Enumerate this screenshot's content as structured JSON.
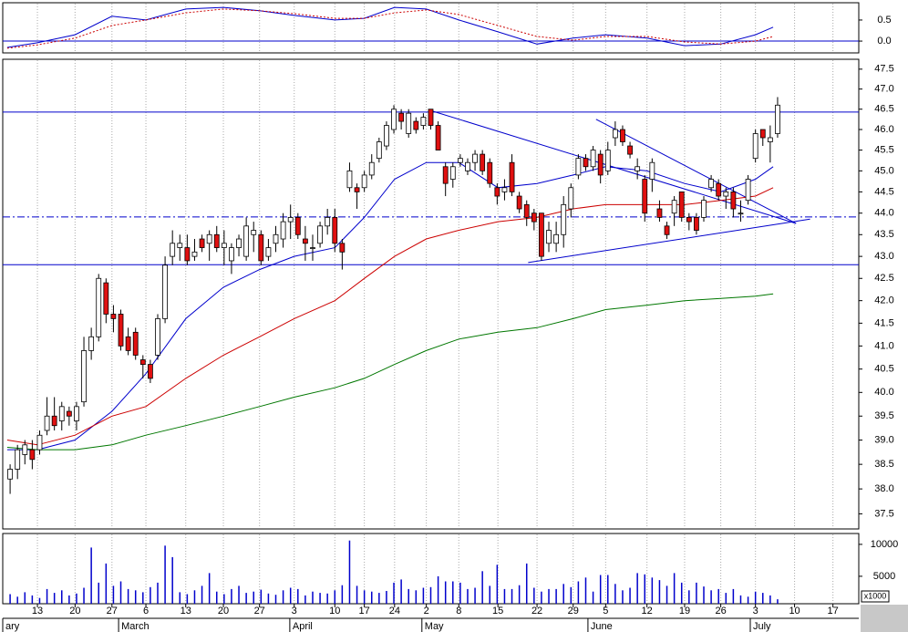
{
  "chart_data": [
    {
      "type": "line",
      "xlim": [
        0,
        116
      ],
      "ylim": [
        -0.28,
        0.91
      ],
      "yticks": [
        {
          "value": 0,
          "label": "0.0"
        },
        0.5
      ],
      "hlines": [
        {
          "value": 0,
          "color": "#0000cc",
          "style": "solid"
        }
      ],
      "series": [
        {
          "color": "#0000cc",
          "style": "solid",
          "x": [
            0.6,
            4.7,
            9.8,
            14.8,
            19.4,
            24.8,
            29.9,
            34.8,
            39.5,
            45.0,
            49.0,
            53.1,
            57.4,
            61.8,
            67.1,
            72.4,
            77.3,
            81.7,
            87.3,
            92.4,
            97.3,
            102.0,
            104.4
          ],
          "values": [
            -0.15,
            -0.04,
            0.15,
            0.59,
            0.5,
            0.76,
            0.8,
            0.72,
            0.61,
            0.5,
            0.54,
            0.8,
            0.76,
            0.5,
            0.22,
            -0.07,
            0.07,
            0.15,
            0.07,
            -0.11,
            -0.07,
            0.15,
            0.33
          ]
        },
        {
          "color": "#cc0000",
          "style": "dotted",
          "x": [
            0.6,
            4.7,
            9.8,
            14.8,
            19.4,
            24.8,
            29.9,
            34.8,
            39.5,
            45.0,
            49.0,
            53.1,
            57.4,
            61.8,
            67.1,
            72.4,
            77.3,
            81.7,
            87.3,
            92.4,
            97.3,
            102.0,
            104.4
          ],
          "values": [
            -0.17,
            -0.09,
            0.07,
            0.37,
            0.5,
            0.67,
            0.76,
            0.72,
            0.65,
            0.54,
            0.54,
            0.67,
            0.74,
            0.63,
            0.37,
            0.11,
            0.02,
            0.11,
            0.11,
            -0.02,
            -0.07,
            0,
            0.11
          ]
        }
      ]
    },
    {
      "type": "candlestick",
      "xlim": [
        0,
        116
      ],
      "ylim": [
        37.2,
        47.75
      ],
      "log": true,
      "yticks": [
        47.5,
        {
          "value": 47,
          "label": "47.0"
        },
        46.5,
        {
          "value": 46,
          "label": "46.0"
        },
        45.5,
        {
          "value": 45,
          "label": "45.0"
        },
        44.5,
        {
          "value": 44,
          "label": "44.0"
        },
        43.5,
        {
          "value": 43,
          "label": "43.0"
        },
        42.5,
        {
          "value": 42,
          "label": "42.0"
        },
        41.5,
        {
          "value": 41,
          "label": "41.0"
        },
        40.5,
        {
          "value": 40,
          "label": "40.0"
        },
        39.5,
        {
          "value": 39,
          "label": "39.0"
        },
        38.5,
        {
          "value": 38,
          "label": "38.0"
        },
        37.5
      ],
      "up_color": "#ffffff",
      "down_color": "#e01010",
      "x": [
        1,
        2,
        3,
        4,
        5,
        6,
        7,
        8,
        9,
        10,
        11,
        12,
        13,
        14,
        15,
        16,
        17,
        18,
        19,
        20,
        21,
        22,
        23,
        24,
        25,
        26,
        27,
        28,
        29,
        30,
        31,
        32,
        33,
        34,
        35,
        36,
        37,
        38,
        39,
        40,
        41,
        42,
        43,
        44,
        45,
        46,
        47,
        48,
        49,
        50,
        51,
        52,
        53,
        54,
        55,
        56,
        57,
        58,
        59,
        60,
        61,
        62,
        63,
        64,
        65,
        66,
        67,
        68,
        69,
        70,
        71,
        72,
        73,
        74,
        75,
        76,
        77,
        78,
        79,
        80,
        81,
        82,
        83,
        84,
        85,
        86,
        87,
        88,
        89,
        90,
        91,
        92,
        93,
        94,
        95,
        96,
        97,
        98,
        99,
        100,
        101,
        102,
        103,
        104,
        105
      ],
      "open": [
        38.2,
        38.4,
        38.7,
        38.8,
        38.8,
        39.2,
        39.5,
        39.4,
        39.6,
        39.4,
        39.8,
        40.9,
        41.2,
        42.4,
        41.7,
        41.7,
        41.2,
        41.3,
        40.7,
        40.6,
        40.8,
        41.6,
        43.0,
        43.2,
        43.2,
        43.0,
        43.4,
        43.3,
        43.5,
        43.2,
        42.9,
        43.2,
        43.0,
        43.5,
        43.5,
        43.0,
        43.3,
        43.4,
        43.8,
        43.9,
        43.4,
        43.2,
        43.3,
        43.7,
        43.9,
        43.3,
        44.6,
        44.6,
        44.6,
        44.9,
        45.3,
        45.6,
        46.0,
        46.4,
        45.9,
        46.2,
        46.1,
        46.5,
        46.1,
        45.1,
        44.8,
        45.2,
        45.0,
        45.2,
        45.4,
        45.2,
        44.6,
        44.5,
        45.2,
        44.4,
        44.2,
        44.0,
        44.0,
        43.3,
        43.3,
        43.5,
        44.1,
        44.9,
        45.3,
        45.1,
        45.4,
        45.0,
        45.8,
        46.0,
        45.6,
        45.0,
        44.8,
        44.8,
        44.1,
        43.7,
        44.0,
        44.5,
        43.9,
        43.9,
        43.9,
        44.6,
        44.7,
        44.4,
        44.5,
        44.0,
        44.3,
        45.3,
        46.0,
        45.7,
        45.9
      ],
      "high": [
        38.5,
        38.9,
        39.0,
        39.0,
        39.2,
        39.9,
        39.9,
        39.8,
        39.7,
        39.8,
        41.2,
        41.4,
        42.6,
        42.5,
        41.9,
        41.8,
        41.4,
        41.4,
        40.8,
        40.7,
        41.7,
        43.0,
        43.6,
        43.5,
        43.5,
        43.4,
        43.5,
        43.6,
        43.7,
        43.6,
        43.3,
        43.5,
        43.9,
        43.8,
        43.6,
        43.4,
        43.7,
        44.0,
        44.2,
        44.0,
        43.7,
        43.5,
        43.8,
        44.1,
        44.1,
        43.4,
        45.2,
        44.7,
        45.0,
        45.4,
        45.8,
        46.2,
        46.6,
        46.5,
        46.5,
        46.3,
        46.4,
        46.5,
        46.2,
        45.2,
        45.2,
        45.4,
        45.3,
        45.5,
        45.5,
        45.3,
        44.7,
        44.8,
        45.4,
        44.5,
        44.3,
        44.1,
        44.0,
        43.8,
        43.8,
        44.4,
        44.7,
        45.4,
        45.4,
        45.6,
        45.5,
        45.7,
        46.2,
        46.1,
        45.7,
        45.3,
        44.9,
        45.3,
        44.3,
        43.8,
        44.4,
        44.5,
        44.0,
        44.0,
        44.4,
        44.9,
        44.8,
        44.6,
        44.6,
        44.3,
        44.9,
        46.0,
        46.0,
        46.1,
        46.8
      ],
      "low": [
        37.9,
        38.2,
        38.5,
        38.4,
        38.7,
        39.1,
        39.2,
        39.2,
        39.3,
        39.2,
        39.7,
        40.7,
        41.1,
        41.5,
        41.3,
        40.9,
        40.8,
        40.7,
        40.3,
        40.2,
        40.7,
        41.5,
        42.8,
        42.9,
        42.8,
        42.9,
        43.1,
        42.9,
        43.1,
        42.8,
        42.6,
        43.0,
        42.9,
        43.1,
        42.8,
        42.9,
        43.1,
        43.2,
        43.4,
        43.4,
        42.9,
        42.9,
        43.2,
        43.5,
        43.1,
        42.7,
        44.5,
        44.1,
        44.5,
        44.8,
        45.2,
        45.5,
        45.9,
        46.0,
        45.8,
        45.9,
        46.0,
        46.0,
        45.5,
        44.4,
        44.6,
        45.1,
        44.9,
        45.0,
        44.9,
        44.6,
        44.2,
        44.3,
        44.4,
        44.0,
        43.7,
        43.6,
        42.9,
        43.1,
        43.1,
        43.2,
        43.9,
        44.8,
        45.0,
        45.0,
        44.7,
        44.9,
        45.6,
        45.6,
        45.3,
        44.8,
        43.8,
        44.5,
        43.8,
        43.4,
        43.7,
        43.8,
        43.6,
        43.5,
        43.8,
        44.5,
        44.3,
        44.1,
        43.9,
        43.8,
        44.2,
        45.2,
        45.6,
        45.2,
        45.8
      ],
      "close": [
        38.4,
        38.8,
        38.9,
        38.6,
        39.1,
        39.5,
        39.3,
        39.7,
        39.5,
        39.7,
        40.9,
        41.2,
        42.5,
        41.7,
        41.6,
        41.0,
        40.9,
        40.8,
        40.6,
        40.3,
        41.6,
        42.8,
        43.3,
        43.3,
        42.9,
        43.1,
        43.2,
        43.5,
        43.2,
        43.3,
        43.2,
        43.4,
        43.7,
        43.6,
        42.9,
        43.2,
        43.5,
        43.8,
        43.9,
        43.5,
        43.3,
        43.2,
        43.7,
        43.9,
        43.3,
        43.1,
        45.0,
        44.5,
        44.9,
        45.2,
        45.7,
        46.1,
        46.5,
        46.2,
        46.4,
        46.0,
        46.3,
        46.1,
        45.5,
        44.7,
        45.1,
        45.3,
        45.2,
        45.4,
        45.0,
        44.7,
        44.4,
        44.6,
        44.5,
        44.1,
        43.9,
        43.8,
        43.0,
        43.6,
        43.5,
        44.2,
        44.6,
        45.3,
        45.1,
        45.5,
        44.9,
        45.5,
        46.0,
        45.7,
        45.4,
        45.1,
        44.0,
        45.2,
        43.9,
        43.5,
        44.3,
        43.9,
        43.8,
        43.6,
        44.3,
        44.8,
        44.4,
        44.5,
        44.1,
        44.0,
        44.8,
        45.9,
        45.8,
        45.8,
        46.6
      ],
      "series": [
        {
          "color": "#0000cc",
          "style": "solid",
          "x": [
            0.6,
            4.7,
            9.8,
            14.8,
            19.4,
            24.8,
            29.9,
            34.8,
            39.5,
            45.0,
            49.0,
            53.1,
            57.4,
            61.8,
            67.1,
            72.4,
            77.3,
            81.7,
            87.3,
            92.4,
            97.3,
            102.0,
            104.4
          ],
          "values": [
            38.8,
            38.8,
            39.0,
            39.6,
            40.4,
            41.6,
            42.3,
            42.7,
            43.0,
            43.2,
            43.9,
            44.8,
            45.2,
            45.2,
            44.6,
            44.7,
            44.9,
            45.1,
            45.0,
            44.7,
            44.5,
            44.8,
            45.1
          ]
        },
        {
          "color": "#cc0000",
          "style": "solid",
          "x": [
            0.6,
            4.7,
            9.8,
            14.8,
            19.4,
            24.8,
            29.9,
            34.8,
            39.5,
            45.0,
            49.0,
            53.1,
            57.4,
            61.8,
            67.1,
            72.4,
            77.3,
            81.7,
            87.3,
            92.4,
            97.3,
            102.0,
            104.4
          ],
          "values": [
            39.0,
            38.9,
            39.1,
            39.5,
            39.7,
            40.3,
            40.8,
            41.2,
            41.6,
            42.0,
            42.5,
            43.0,
            43.4,
            43.6,
            43.8,
            43.9,
            44.1,
            44.2,
            44.2,
            44.2,
            44.3,
            44.4,
            44.6
          ]
        },
        {
          "color": "#007700",
          "style": "solid",
          "x": [
            0.6,
            4.7,
            9.8,
            14.8,
            19.4,
            24.8,
            29.9,
            34.8,
            39.5,
            45.0,
            49.0,
            53.1,
            57.4,
            61.8,
            67.1,
            72.4,
            77.3,
            81.7,
            87.3,
            92.4,
            97.3,
            102.0,
            104.4
          ],
          "values": [
            38.85,
            38.8,
            38.8,
            38.9,
            39.1,
            39.3,
            39.5,
            39.7,
            39.9,
            40.1,
            40.3,
            40.6,
            40.9,
            41.15,
            41.3,
            41.4,
            41.6,
            41.8,
            41.9,
            42.0,
            42.05,
            42.1,
            42.15
          ]
        }
      ],
      "hlines": [
        {
          "value": 46.43,
          "color": "#0000cc",
          "style": "solid"
        },
        {
          "value": 43.91,
          "color": "#0000cc",
          "style": "dashdot"
        },
        {
          "value": 42.81,
          "color": "#0000cc",
          "style": "solid"
        }
      ],
      "trendlines": [
        {
          "color": "#0000cc",
          "x": [
            58.1,
            107.5
          ],
          "y": [
            46.46,
            43.76
          ]
        },
        {
          "color": "#0000cc",
          "x": [
            80.4,
            107.5
          ],
          "y": [
            46.25,
            43.76
          ]
        },
        {
          "color": "#0000cc",
          "x": [
            71.2,
            109.4
          ],
          "y": [
            42.86,
            43.86
          ]
        }
      ]
    },
    {
      "type": "bar",
      "xlim": [
        0,
        116
      ],
      "ylim": [
        700,
        11700
      ],
      "color": "#0000cc",
      "grid": true,
      "yticks": [
        5000,
        10000
      ],
      "multiplier": "x1000",
      "x": [
        1,
        2,
        3,
        4,
        5,
        6,
        7,
        8,
        9,
        10,
        11,
        12,
        13,
        14,
        15,
        16,
        17,
        18,
        19,
        20,
        21,
        22,
        23,
        24,
        25,
        26,
        27,
        28,
        29,
        30,
        31,
        32,
        33,
        34,
        35,
        36,
        37,
        38,
        39,
        40,
        41,
        42,
        43,
        44,
        45,
        46,
        47,
        48,
        49,
        50,
        51,
        52,
        53,
        54,
        55,
        56,
        57,
        58,
        59,
        60,
        61,
        62,
        63,
        64,
        65,
        66,
        67,
        68,
        69,
        70,
        71,
        72,
        73,
        74,
        75,
        76,
        77,
        78,
        79,
        80,
        81,
        82,
        83,
        84,
        85,
        86,
        87,
        88,
        89,
        90,
        91,
        92,
        93,
        94,
        95,
        96,
        97,
        98,
        99,
        100,
        101,
        102,
        103,
        104,
        105
      ],
      "values": [
        2200,
        1800,
        2500,
        2000,
        1600,
        3000,
        2400,
        2800,
        2000,
        2300,
        3200,
        9500,
        4000,
        7000,
        3500,
        4200,
        3000,
        2800,
        2500,
        3300,
        4000,
        9800,
        8000,
        2500,
        2200,
        2800,
        3500,
        5500,
        2600,
        2200,
        3000,
        3500,
        2400,
        2600,
        2900,
        2300,
        2100,
        2800,
        3200,
        3000,
        2000,
        2600,
        2400,
        2300,
        2800,
        3600,
        10600,
        3500,
        2800,
        2600,
        2400,
        2700,
        4000,
        4500,
        3000,
        2800,
        3200,
        3300,
        5000,
        4200,
        4200,
        4000,
        3000,
        3200,
        5800,
        3500,
        6800,
        3000,
        3000,
        3600,
        7000,
        3200,
        2600,
        3000,
        3000,
        3800,
        3300,
        4200,
        4800,
        2600,
        5200,
        5200,
        3800,
        2800,
        3200,
        5500,
        5300,
        4800,
        4400,
        3500,
        5500,
        4000,
        2800,
        4000,
        3400,
        2800,
        3000,
        2400,
        3000,
        2000,
        1800,
        2600,
        2400,
        2000,
        1400
      ],
      "xticks": [
        {
          "value": 4.7,
          "label": "13"
        },
        {
          "value": 9.8,
          "label": "20"
        },
        {
          "value": 14.8,
          "label": "27"
        },
        {
          "value": 19.4,
          "label": "6"
        },
        {
          "value": 24.8,
          "label": "13"
        },
        {
          "value": 29.9,
          "label": "20"
        },
        {
          "value": 34.8,
          "label": "27"
        },
        {
          "value": 39.5,
          "label": "3"
        },
        {
          "value": 45.0,
          "label": "10"
        },
        {
          "value": 49.0,
          "label": "17"
        },
        {
          "value": 53.1,
          "label": "24"
        },
        {
          "value": 57.4,
          "label": "2"
        },
        {
          "value": 61.8,
          "label": "8"
        },
        {
          "value": 67.1,
          "label": "15"
        },
        {
          "value": 72.4,
          "label": "22"
        },
        {
          "value": 77.3,
          "label": "29"
        },
        {
          "value": 81.7,
          "label": "5"
        },
        {
          "value": 87.3,
          "label": "12"
        },
        {
          "value": 92.4,
          "label": "19"
        },
        {
          "value": 97.3,
          "label": "26"
        },
        {
          "value": 102.0,
          "label": "3"
        },
        {
          "value": 107.3,
          "label": "10"
        },
        {
          "value": 112.5,
          "label": "17"
        }
      ],
      "month_ticks": [
        {
          "value": 0,
          "label": "ary"
        },
        {
          "value": 15.7,
          "label": "March"
        },
        {
          "value": 38.9,
          "label": "April"
        },
        {
          "value": 56.8,
          "label": "May"
        },
        {
          "value": 79.3,
          "label": "June"
        },
        {
          "value": 101.3,
          "label": "July"
        }
      ]
    }
  ]
}
